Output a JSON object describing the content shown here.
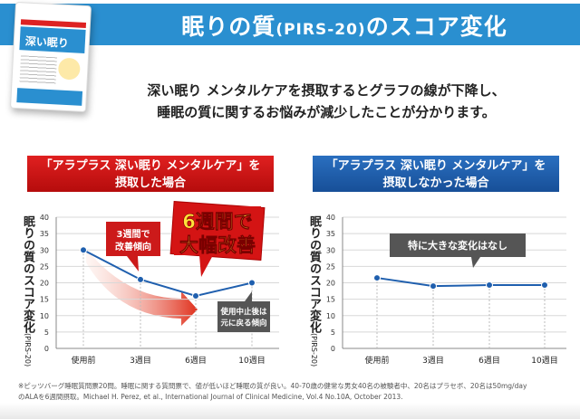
{
  "header": {
    "title": "眠りの質",
    "title_sub": "(PIRS-20)",
    "title_end": "のスコア変化"
  },
  "product": {
    "name": "深い眠り"
  },
  "lead": {
    "line1": "深い眠り メンタルケアを摂取するとグラフの線が下降し、",
    "line2": "睡眠の質に関するお悩みが減少したことが分かります。"
  },
  "panels": [
    {
      "title1": "「アラプラス 深い眠り メンタルケア」を",
      "title2": "摂取した場合"
    },
    {
      "title1": "「アラプラス 深い眠り メンタルケア」を",
      "title2": "摂取しなかった場合"
    }
  ],
  "ylabel": "眠りの質のスコア変化",
  "ylabel_sub": "(PIRS-20)",
  "callouts": {
    "left_small": [
      "3週間で",
      "改善傾向"
    ],
    "left_big": [
      "6週間で",
      "大幅改善"
    ],
    "left_gray": [
      "使用中止後は",
      "元に戻る傾向"
    ],
    "right_gray": "特に大きな変化はなし"
  },
  "footnote": [
    "※ピッツバーグ睡眠質問票20問。睡眠に関する質問票で、値が低いほど睡眠の質が良い。40-70歳の健常な男女40名の被験者中、20名はプラセボ、20名は50mg/day",
    "のALAを6週間摂取。Michael H. Perez, et al., International Journal of Clinical Medicine, Vol.4 No.10A, October 2013."
  ],
  "colors": {
    "band": "#2a8fd0",
    "red": "#d01818",
    "navy": "#1e5aa8",
    "line": "#1f5fae"
  },
  "chart_data": [
    {
      "type": "line",
      "title": "摂取した場合",
      "categories": [
        "使用前",
        "3週目",
        "6週目",
        "10週目"
      ],
      "values": [
        30,
        21,
        16,
        20
      ],
      "ylim": [
        0,
        40
      ],
      "yticks": [
        0,
        5,
        10,
        15,
        20,
        25,
        30,
        35,
        40
      ],
      "ylabel": "眠りの質のスコア変化(PIRS-20)",
      "grid": true
    },
    {
      "type": "line",
      "title": "摂取しなかった場合",
      "categories": [
        "使用前",
        "3週目",
        "6週目",
        "10週目"
      ],
      "values": [
        21.5,
        19,
        19.3,
        19.3
      ],
      "ylim": [
        0,
        40
      ],
      "yticks": [
        0,
        5,
        10,
        15,
        20,
        25,
        30,
        35,
        40
      ],
      "ylabel": "眠りの質のスコア変化(PIRS-20)",
      "grid": true
    }
  ]
}
